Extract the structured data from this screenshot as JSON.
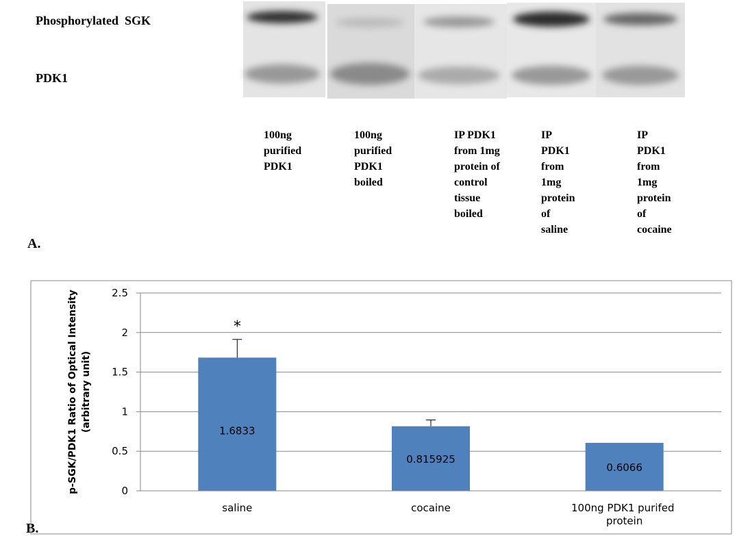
{
  "panel_a": {
    "label": "A.",
    "rows": [
      "Phosphorylated  SGK",
      "PDK1"
    ],
    "lanes": [
      [
        "100ng",
        "purified",
        "PDK1"
      ],
      [
        "100ng",
        "purified",
        "PDK1",
        "boiled"
      ],
      [
        "IP PDK1",
        "from 1mg",
        "protein of",
        "control",
        "tissue",
        "boiled"
      ],
      [
        "IP",
        "PDK1",
        "from",
        "1mg",
        "protein",
        "of",
        "saline"
      ],
      [
        "IP",
        "PDK1",
        "from",
        "1mg",
        "protein",
        "of",
        "cocaine"
      ]
    ]
  },
  "chart_data": {
    "type": "bar",
    "panel_label": "B.",
    "ylabel": [
      "p-SGK/PDK1 Ratio of Optical Intensity",
      "(arbitrary unit)"
    ],
    "categories": [
      "saline",
      "cocaine",
      "100ng PDK1 purifed protein"
    ],
    "values": [
      1.6833,
      0.815925,
      0.6066
    ],
    "errors": [
      0.23,
      0.08,
      null
    ],
    "annotations": [
      "*",
      null,
      null
    ],
    "color": "#4f81bd",
    "ylim": [
      0,
      2.5
    ],
    "yticks": [
      0,
      0.5,
      1,
      1.5,
      2,
      2.5
    ],
    "grid": true
  }
}
